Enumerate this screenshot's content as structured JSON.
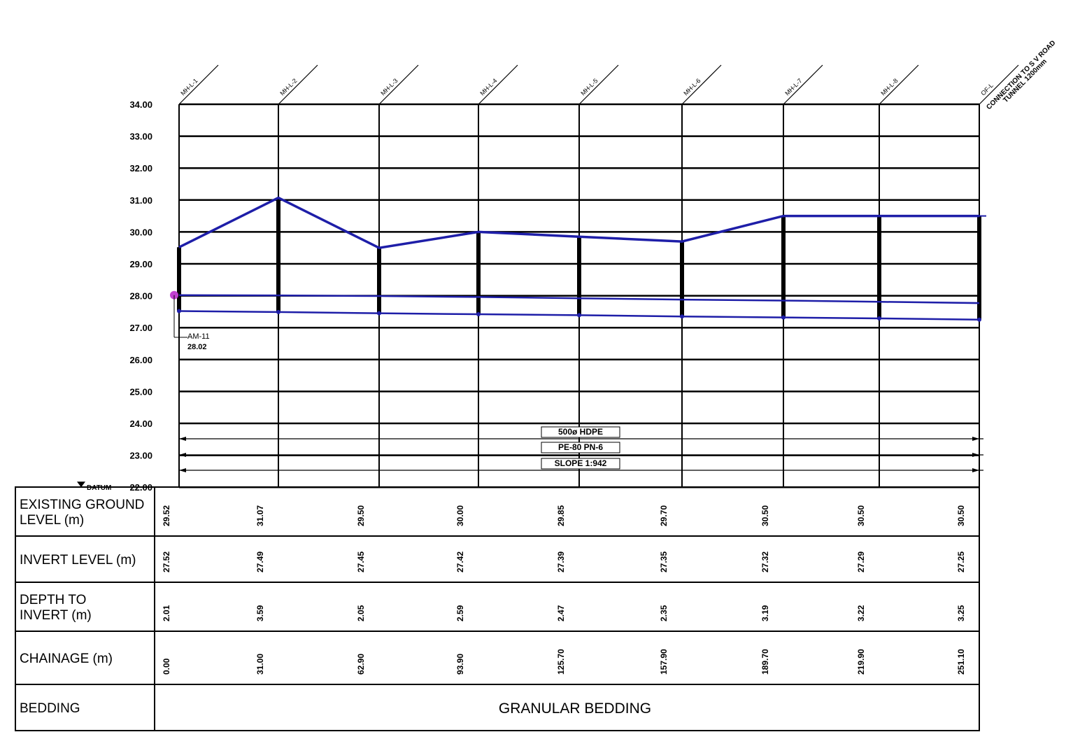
{
  "axis": {
    "elevations": [
      "34.00",
      "33.00",
      "32.00",
      "31.00",
      "30.00",
      "29.00",
      "28.00",
      "27.00",
      "26.00",
      "25.00",
      "24.00",
      "23.00",
      "22.00"
    ],
    "datum_label": "DATUM",
    "datum_value": 22.0,
    "top_value": 34.0
  },
  "manholes": [
    "MH-L-1",
    "MH-L-2",
    "MH-L-3",
    "MH-L-4",
    "MH-L-5",
    "MH-L-6",
    "MH-L-7",
    "MH-L-8",
    "OF-L"
  ],
  "outfall_note": {
    "line1": "CONNECTION TO S V ROAD",
    "line2": "TUNNEL 1200mm"
  },
  "marker": {
    "label": "AM-11",
    "value": "28.02",
    "elev": 28.02
  },
  "pipe": {
    "line1": "500ø HDPE",
    "line2": "PE-80 PN-6",
    "line3": "SLOPE 1:942"
  },
  "table": {
    "rows": [
      {
        "label_lines": [
          "EXISTING GROUND",
          "LEVEL (m)"
        ],
        "values": [
          "29.52",
          "31.07",
          "29.50",
          "30.00",
          "29.85",
          "29.70",
          "30.50",
          "30.50",
          "30.50"
        ]
      },
      {
        "label_lines": [
          "INVERT LEVEL (m)"
        ],
        "values": [
          "27.52",
          "27.49",
          "27.45",
          "27.42",
          "27.39",
          "27.35",
          "27.32",
          "27.29",
          "27.25"
        ]
      },
      {
        "label_lines": [
          "DEPTH TO",
          "INVERT (m)"
        ],
        "values": [
          "2.01",
          "3.59",
          "2.05",
          "2.59",
          "2.47",
          "2.35",
          "3.19",
          "3.22",
          "3.25"
        ]
      },
      {
        "label_lines": [
          "CHAINAGE (m)"
        ],
        "values": [
          "0.00",
          "31.00",
          "62.90",
          "93.90",
          "125.70",
          "157.90",
          "189.70",
          "219.90",
          "251.10"
        ]
      }
    ],
    "bedding_label": "BEDDING",
    "bedding_value": "GRANULAR BEDDING"
  },
  "profile": {
    "ground": [
      29.52,
      31.07,
      29.5,
      30.0,
      29.85,
      29.7,
      30.5,
      30.5,
      30.5
    ],
    "crown": [
      28.02,
      28.01,
      27.99,
      27.96,
      27.92,
      27.88,
      27.85,
      27.81,
      27.77
    ],
    "invert": [
      27.52,
      27.49,
      27.45,
      27.42,
      27.39,
      27.35,
      27.32,
      27.29,
      27.25
    ]
  },
  "colors": {
    "profile": "#1e1ea8",
    "line": "#000000",
    "marker": "#c040d0"
  }
}
